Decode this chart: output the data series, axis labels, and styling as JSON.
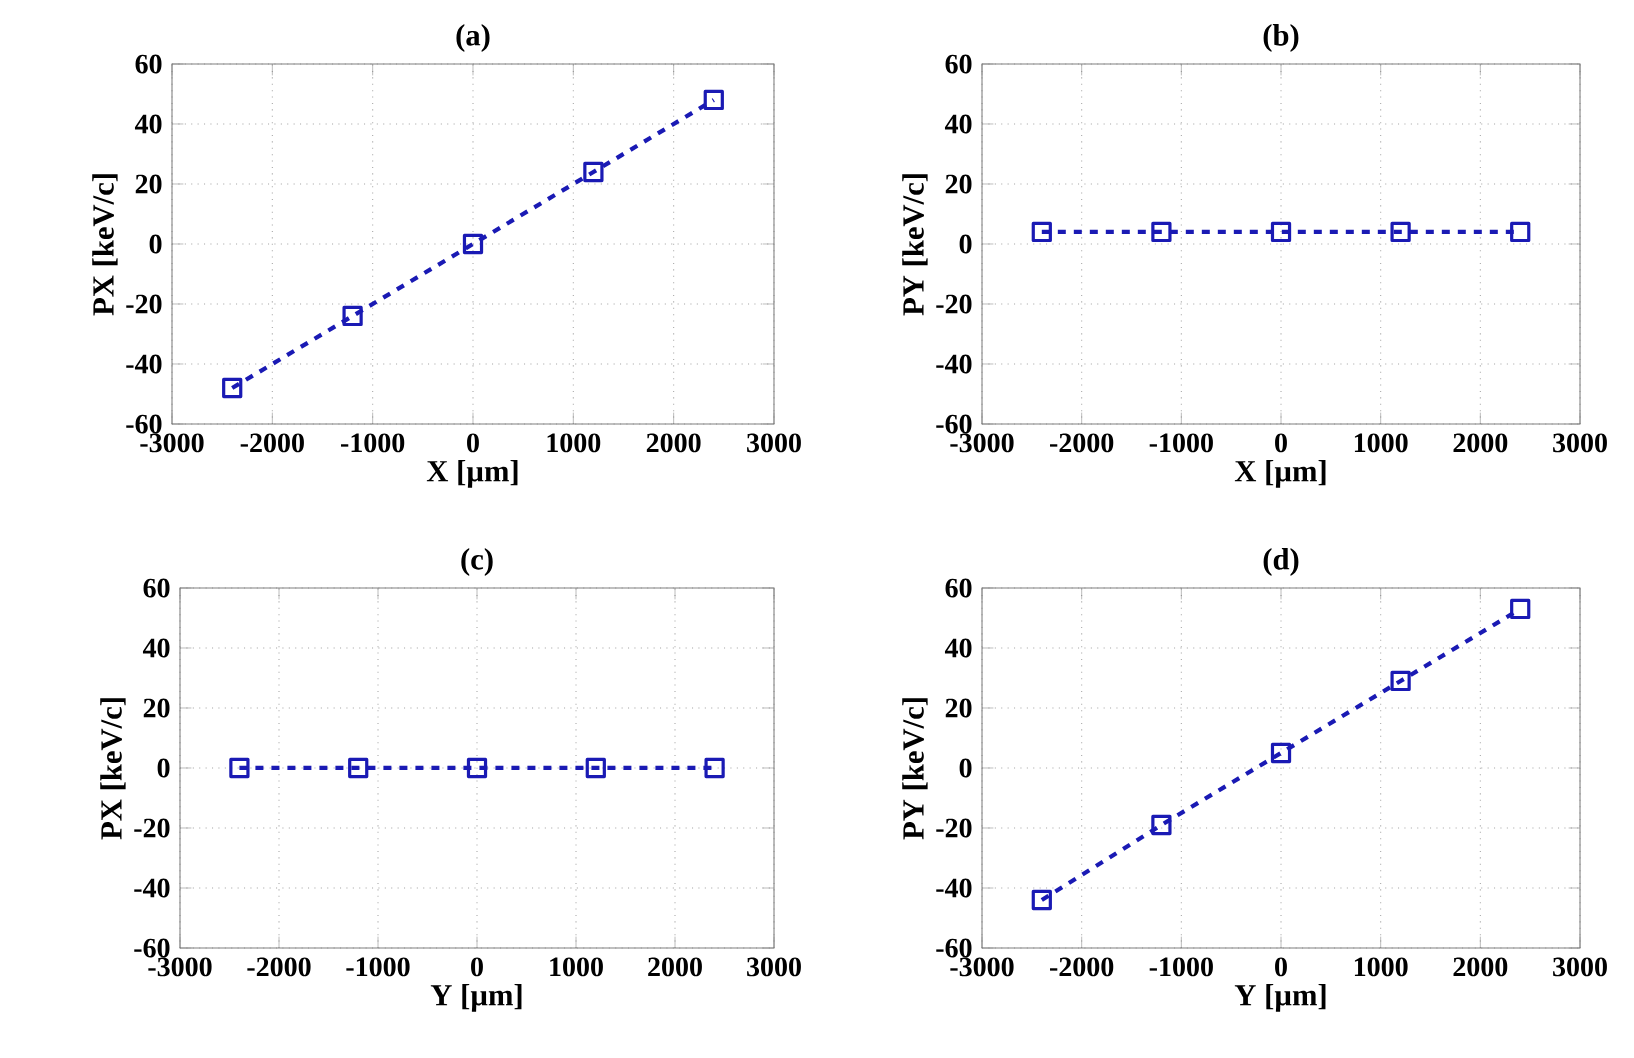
{
  "chart_data": [
    {
      "type": "line",
      "title": "(a)",
      "xlabel": "X [µm]",
      "ylabel": "PX [keV/c]",
      "x": [
        -2400,
        -1200,
        0,
        1200,
        2400
      ],
      "series": [
        {
          "color": "#1a1ab4",
          "values": [
            -48,
            -24,
            0,
            24,
            48
          ]
        }
      ],
      "xlim": [
        -3000,
        3000
      ],
      "ylim": [
        -60,
        60
      ],
      "xticks": [
        -3000,
        -2000,
        -1000,
        0,
        1000,
        2000,
        3000
      ],
      "yticks": [
        -60,
        -40,
        -20,
        0,
        20,
        40,
        60
      ],
      "grid": true,
      "marker": "square",
      "line_style": "dashed"
    },
    {
      "type": "line",
      "title": "(b)",
      "xlabel": "X [µm]",
      "ylabel": "PY [keV/c]",
      "x": [
        -2400,
        -1200,
        0,
        1200,
        2400
      ],
      "series": [
        {
          "color": "#1a1ab4",
          "values": [
            4,
            4,
            4,
            4,
            4
          ]
        }
      ],
      "xlim": [
        -3000,
        3000
      ],
      "ylim": [
        -60,
        60
      ],
      "xticks": [
        -3000,
        -2000,
        -1000,
        0,
        1000,
        2000,
        3000
      ],
      "yticks": [
        -60,
        -40,
        -20,
        0,
        20,
        40,
        60
      ],
      "grid": true,
      "marker": "square",
      "line_style": "dashed"
    },
    {
      "type": "line",
      "title": "(c)",
      "xlabel": "Y [µm]",
      "ylabel": "PX [keV/c]",
      "x": [
        -2400,
        -1200,
        0,
        1200,
        2400
      ],
      "series": [
        {
          "color": "#1a1ab4",
          "values": [
            0,
            0,
            0,
            0,
            0
          ]
        }
      ],
      "xlim": [
        -3000,
        3000
      ],
      "ylim": [
        -60,
        60
      ],
      "xticks": [
        -3000,
        -2000,
        -1000,
        0,
        1000,
        2000,
        3000
      ],
      "yticks": [
        -60,
        -40,
        -20,
        0,
        20,
        40,
        60
      ],
      "grid": true,
      "marker": "square",
      "line_style": "dashed"
    },
    {
      "type": "line",
      "title": "(d)",
      "xlabel": "Y [µm]",
      "ylabel": "PY [keV/c]",
      "x": [
        -2400,
        -1200,
        0,
        1200,
        2400
      ],
      "series": [
        {
          "color": "#1a1ab4",
          "values": [
            -44,
            -19,
            5,
            29,
            53
          ]
        }
      ],
      "xlim": [
        -3000,
        3000
      ],
      "ylim": [
        -60,
        60
      ],
      "xticks": [
        -3000,
        -2000,
        -1000,
        0,
        1000,
        2000,
        3000
      ],
      "yticks": [
        -60,
        -40,
        -20,
        0,
        20,
        40,
        60
      ],
      "grid": true,
      "marker": "square",
      "line_style": "dashed"
    }
  ]
}
